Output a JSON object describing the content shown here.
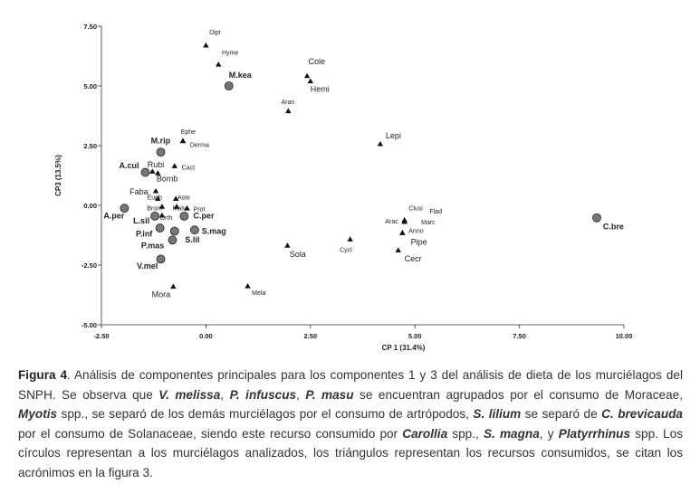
{
  "chart_data": {
    "type": "scatter",
    "title": "",
    "xlabel": "CP 1 (31.4%)",
    "ylabel": "CP3 (13.5%)",
    "xlim": [
      -2.5,
      10.0
    ],
    "ylim": [
      -5.0,
      7.5
    ],
    "xticks": [
      {
        "v": -2.5,
        "label": "-2.50"
      },
      {
        "v": 0.0,
        "label": "0.00"
      },
      {
        "v": 2.5,
        "label": "2.50"
      },
      {
        "v": 5.0,
        "label": "5.00"
      },
      {
        "v": 7.5,
        "label": "7.50"
      },
      {
        "v": 10.0,
        "label": "10.00"
      }
    ],
    "yticks": [
      {
        "v": 7.5,
        "label": "7.50"
      },
      {
        "v": 5.0,
        "label": "5.00"
      },
      {
        "v": 2.5,
        "label": "2.50"
      },
      {
        "v": 0.0,
        "label": "0.00"
      },
      {
        "v": -2.5,
        "label": "-2.50"
      },
      {
        "v": -5.0,
        "label": "-5.00"
      }
    ],
    "bats": [
      {
        "label": "M.kea",
        "x": 0.55,
        "y": 5.0,
        "anchor": "start",
        "lx": 0.55,
        "ly": 5.35
      },
      {
        "label": "M.rip",
        "x": -1.08,
        "y": 2.23,
        "anchor": "end",
        "lx": -0.85,
        "ly": 2.6
      },
      {
        "label": "A.cul",
        "x": -1.45,
        "y": 1.38,
        "anchor": "end",
        "lx": -1.6,
        "ly": 1.55
      },
      {
        "label": "A.per",
        "x": -1.95,
        "y": -0.12,
        "anchor": "end",
        "lx": -1.95,
        "ly": -0.55
      },
      {
        "label": "L.sil",
        "x": -1.22,
        "y": -0.45,
        "anchor": "end",
        "lx": -1.35,
        "ly": -0.75
      },
      {
        "label": "P.inf",
        "x": -1.1,
        "y": -0.95,
        "anchor": "end",
        "lx": -1.28,
        "ly": -1.3
      },
      {
        "label": "P.mas",
        "x": -0.8,
        "y": -1.45,
        "anchor": "end",
        "lx": -1.0,
        "ly": -1.8
      },
      {
        "label": "V.mel",
        "x": -1.08,
        "y": -2.25,
        "anchor": "end",
        "lx": -1.15,
        "ly": -2.65
      },
      {
        "label": "C.per",
        "x": -0.52,
        "y": -0.45,
        "anchor": "start",
        "lx": -0.3,
        "ly": -0.55
      },
      {
        "label": "S.mag",
        "x": -0.27,
        "y": -1.03,
        "anchor": "start",
        "lx": -0.1,
        "ly": -1.2
      },
      {
        "label": "S.lil",
        "x": -0.75,
        "y": -1.08,
        "anchor": "start",
        "lx": -0.5,
        "ly": -1.55
      },
      {
        "label": "C.bre",
        "x": 9.35,
        "y": -0.52,
        "anchor": "start",
        "lx": 9.5,
        "ly": -1.0
      }
    ],
    "resources": [
      {
        "label": "Dipt",
        "x": 0.0,
        "y": 6.7,
        "anchor": "start",
        "lx": 0.08,
        "ly": 7.15,
        "big": false
      },
      {
        "label": "Hyme",
        "x": 0.3,
        "y": 5.9,
        "anchor": "start",
        "lx": 0.38,
        "ly": 6.3,
        "big": false
      },
      {
        "label": "Cole",
        "x": 2.42,
        "y": 5.42,
        "anchor": "start",
        "lx": 2.45,
        "ly": 5.9,
        "big": true
      },
      {
        "label": "Hemi",
        "x": 2.5,
        "y": 5.2,
        "anchor": "start",
        "lx": 2.5,
        "ly": 4.75,
        "big": true
      },
      {
        "label": "Aran",
        "x": 1.97,
        "y": 3.95,
        "anchor": "middle",
        "lx": 1.8,
        "ly": 4.25,
        "big": false
      },
      {
        "label": "Lepi",
        "x": 4.17,
        "y": 2.57,
        "anchor": "start",
        "lx": 4.3,
        "ly": 2.8,
        "big": true
      },
      {
        "label": "Ephe",
        "x": -0.55,
        "y": 2.7,
        "anchor": "start",
        "lx": -0.6,
        "ly": 3.0,
        "big": false
      },
      {
        "label": "Derma",
        "x": -0.55,
        "y": 2.7,
        "anchor": "start",
        "lx": -0.38,
        "ly": 2.45,
        "big": false
      },
      {
        "label": "Cact",
        "x": -0.75,
        "y": 1.65,
        "anchor": "start",
        "lx": -0.58,
        "ly": 1.5,
        "big": false
      },
      {
        "label": "Bomb",
        "x": -1.15,
        "y": 1.35,
        "anchor": "start",
        "lx": -1.18,
        "ly": 1.0,
        "big": true
      },
      {
        "label": "Rubi",
        "x": -1.28,
        "y": 1.42,
        "anchor": "end",
        "lx": -1.0,
        "ly": 1.6,
        "big": true
      },
      {
        "label": "Faba",
        "x": -1.2,
        "y": 0.6,
        "anchor": "end",
        "lx": -1.38,
        "ly": 0.45,
        "big": true
      },
      {
        "label": "Euph",
        "x": -1.15,
        "y": 0.28,
        "anchor": "end",
        "lx": -1.05,
        "ly": 0.25,
        "big": false
      },
      {
        "label": "Aste",
        "x": -0.72,
        "y": 0.28,
        "anchor": "start",
        "lx": -0.68,
        "ly": 0.25,
        "big": false
      },
      {
        "label": "Brom",
        "x": -1.05,
        "y": -0.05,
        "anchor": "end",
        "lx": -1.05,
        "ly": -0.2,
        "big": false
      },
      {
        "label": "Malv",
        "x": -0.7,
        "y": -0.05,
        "anchor": "start",
        "lx": -0.8,
        "ly": -0.2,
        "big": false
      },
      {
        "label": "Prot",
        "x": -0.45,
        "y": -0.12,
        "anchor": "start",
        "lx": -0.3,
        "ly": -0.25,
        "big": false
      },
      {
        "label": "Orth",
        "x": -1.05,
        "y": -0.42,
        "anchor": "start",
        "lx": -1.1,
        "ly": -0.6,
        "big": false
      },
      {
        "label": "Sola",
        "x": 1.95,
        "y": -1.68,
        "anchor": "start",
        "lx": 2.0,
        "ly": -2.15,
        "big": true
      },
      {
        "label": "Cycl",
        "x": 3.45,
        "y": -1.42,
        "anchor": "start",
        "lx": 3.2,
        "ly": -1.95,
        "big": false
      },
      {
        "label": "Mora",
        "x": -0.78,
        "y": -3.4,
        "anchor": "end",
        "lx": -0.85,
        "ly": -3.85,
        "big": true
      },
      {
        "label": "Mela",
        "x": 1.0,
        "y": -3.38,
        "anchor": "start",
        "lx": 1.1,
        "ly": -3.75,
        "big": false
      },
      {
        "label": "Clusi",
        "x": 4.75,
        "y": -0.62,
        "anchor": "start",
        "lx": 4.85,
        "ly": -0.2,
        "big": false
      },
      {
        "label": "Arac",
        "x": 4.75,
        "y": -0.68,
        "anchor": "end",
        "lx": 4.6,
        "ly": -0.75,
        "big": false
      },
      {
        "label": "Flad",
        "x": 4.75,
        "y": -0.62,
        "anchor": "start",
        "lx": 5.35,
        "ly": -0.35,
        "big": false
      },
      {
        "label": "Marc",
        "x": 4.75,
        "y": -0.68,
        "anchor": "start",
        "lx": 5.15,
        "ly": -0.8,
        "big": false
      },
      {
        "label": "Anno",
        "x": 4.7,
        "y": -1.15,
        "anchor": "start",
        "lx": 4.85,
        "ly": -1.15,
        "big": false
      },
      {
        "label": "Pipe",
        "x": 4.7,
        "y": -1.15,
        "anchor": "start",
        "lx": 4.9,
        "ly": -1.65,
        "big": true
      },
      {
        "label": "Cecr",
        "x": 4.6,
        "y": -1.88,
        "anchor": "start",
        "lx": 4.75,
        "ly": -2.35,
        "big": true
      }
    ]
  },
  "caption": {
    "fig_label": "Figura 4",
    "parts": [
      {
        "t": ". Análisis de componentes principales para los componentes 1 y 3 del análisis de dieta de los murciélagos del SNPH. Se observa que ",
        "s": "n"
      },
      {
        "t": "V. melissa",
        "s": "i"
      },
      {
        "t": ", ",
        "s": "n"
      },
      {
        "t": "P. infuscus",
        "s": "i"
      },
      {
        "t": ", ",
        "s": "n"
      },
      {
        "t": "P. masu",
        "s": "i"
      },
      {
        "t": " se encuentran agrupados por el consumo de Moraceae, ",
        "s": "n"
      },
      {
        "t": "Myotis",
        "s": "i"
      },
      {
        "t": " spp., se separó de los demás murciélagos por el consumo de artrópodos, ",
        "s": "n"
      },
      {
        "t": "S. lilium",
        "s": "i"
      },
      {
        "t": " se separó de ",
        "s": "n"
      },
      {
        "t": "C. brevicauda",
        "s": "i"
      },
      {
        "t": " por el consumo de Solanaceae, siendo este recurso consumido por ",
        "s": "n"
      },
      {
        "t": "Carollia",
        "s": "i"
      },
      {
        "t": " spp., ",
        "s": "n"
      },
      {
        "t": "S. magna",
        "s": "i"
      },
      {
        "t": ", y ",
        "s": "n"
      },
      {
        "t": "Platyrrhinus",
        "s": "i"
      },
      {
        "t": " spp. Los círculos representan a los murciélagos analizados, los triángulos representan los recursos consumidos, se citan los acrónimos en la figura 3.",
        "s": "n"
      }
    ]
  }
}
